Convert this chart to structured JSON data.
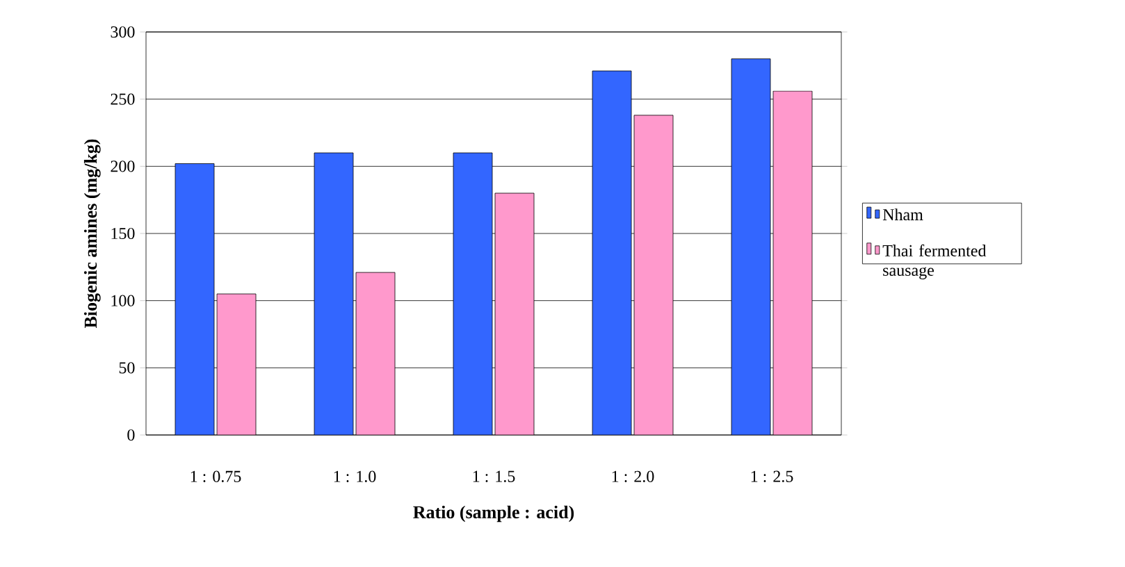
{
  "chart_data": {
    "type": "bar",
    "xlabel": "Ratio (sample : acid)",
    "ylabel": "Biogenic amines (mg/kg)",
    "categories": [
      "1 : 0.75",
      "1 : 1.0",
      "1 : 1.5",
      "1 : 2.0",
      "1 : 2.5"
    ],
    "series": [
      {
        "name": "Nham",
        "color": "#3366ff",
        "values": [
          202,
          210,
          210,
          271,
          280
        ]
      },
      {
        "name": "Thai fermented sausage",
        "color": "#ff99cc",
        "values": [
          105,
          121,
          180,
          238,
          256
        ]
      }
    ],
    "ylim": [
      0,
      300
    ],
    "yticks": [
      0,
      50,
      100,
      150,
      200,
      250,
      300
    ],
    "grid": "y",
    "legend": "right"
  }
}
